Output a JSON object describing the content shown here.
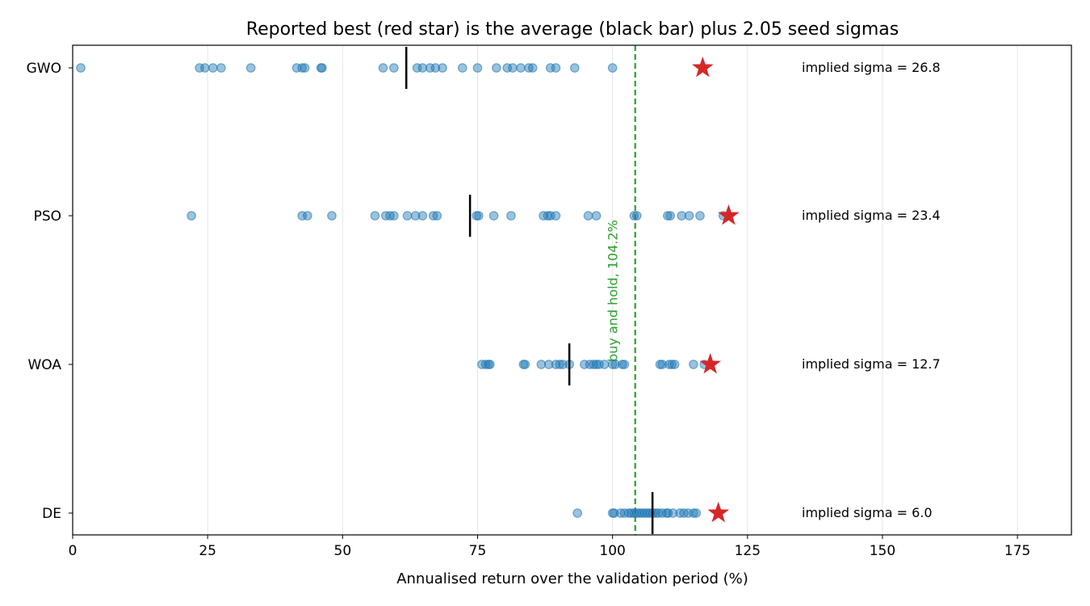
{
  "chart_data": {
    "type": "scatter",
    "title": "Reported best (red star) is the average (black bar) plus 2.05 seed sigmas",
    "xlabel": "Annualised return over the validation period (%)",
    "ylabel": "",
    "xlim": [
      0,
      185
    ],
    "xticks": [
      0,
      25,
      50,
      75,
      100,
      125,
      150,
      175
    ],
    "xtick_labels": [
      "0",
      "25",
      "50",
      "75",
      "100",
      "125",
      "150",
      "175"
    ],
    "grid": "vertical",
    "categories": [
      "GWO",
      "PSO",
      "WOA",
      "DE"
    ],
    "series": [
      {
        "category": "GWO",
        "points": [
          1.5,
          23.5,
          24.5,
          26,
          27.5,
          33,
          41.5,
          42.5,
          43,
          46,
          46.2,
          57.5,
          59.5,
          63.8,
          64.8,
          66.2,
          67.2,
          68.5,
          72.2,
          75,
          78.5,
          80.5,
          81.5,
          83,
          84.5,
          85.2,
          88.5,
          89.5,
          93,
          100
        ],
        "mean": 61.8,
        "best": 116.7,
        "annotation": "implied sigma = 26.8"
      },
      {
        "category": "PSO",
        "points": [
          22,
          42.5,
          43.5,
          48,
          56,
          58,
          58.8,
          59.5,
          62,
          63.5,
          64.8,
          66.8,
          67.5,
          74.8,
          75.2,
          78,
          81.2,
          87.2,
          88,
          88.5,
          89.5,
          95.5,
          97,
          104,
          104.5,
          110.2,
          110.7,
          112.8,
          114.2,
          116.2,
          120.5
        ],
        "mean": 73.6,
        "best": 121.5,
        "annotation": "implied sigma = 23.4"
      },
      {
        "category": "WOA",
        "points": [
          75.8,
          76.5,
          77,
          77.3,
          83.5,
          83.8,
          86.8,
          88.2,
          89.5,
          90.2,
          90.8,
          92,
          94.8,
          95.8,
          96.5,
          97,
          97.5,
          98.5,
          100,
          100.5,
          101.8,
          102.2,
          108.8,
          109.2,
          110.5,
          111,
          111.5,
          115,
          117
        ],
        "mean": 92,
        "best": 118.1,
        "annotation": "implied sigma = 12.7"
      },
      {
        "category": "DE",
        "points": [
          93.5,
          100,
          100.3,
          101.5,
          102.2,
          103,
          103.5,
          104,
          104.5,
          105,
          105.5,
          106,
          106.5,
          107,
          107.5,
          108,
          108.5,
          109.2,
          110,
          110.3,
          111.2,
          112.5,
          113.2,
          114,
          115,
          115.5
        ],
        "mean": 107.4,
        "best": 119.6,
        "annotation": "implied sigma = 6.0"
      }
    ],
    "reference_line": {
      "x": 104.2,
      "label": "buy and hold, 104.2%",
      "color": "#2ca02c"
    },
    "colors": {
      "points": "#1f77b4",
      "mean_bar": "#000000",
      "best_star": "#d62728",
      "grid": "#e5e5e5"
    }
  }
}
